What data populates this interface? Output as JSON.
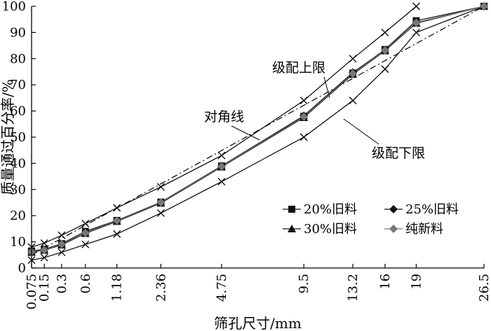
{
  "chart_data": {
    "type": "line",
    "xlabel": "筛孔尺寸/mm",
    "ylabel": "质量通过百分率/%",
    "x_tick_labels": [
      "0.075",
      "0.15",
      "0.3",
      "0.6",
      "1.18",
      "2.36",
      "4.75",
      "9.5",
      "13.2",
      "16",
      "19",
      "26.5"
    ],
    "x_scale": "power-0.45",
    "ylim": [
      0,
      100
    ],
    "y_ticks": [
      0,
      10,
      20,
      30,
      40,
      50,
      60,
      70,
      80,
      90,
      100
    ],
    "grid": false,
    "legend_position": "bottom-right",
    "series": [
      {
        "name": "20%旧料",
        "marker": "square",
        "color": "#111111",
        "x": [
          0.075,
          0.15,
          0.3,
          0.6,
          1.18,
          2.36,
          4.75,
          9.5,
          13.2,
          16,
          19,
          26.5
        ],
        "values": [
          6.5,
          7.2,
          9.3,
          14.0,
          18.2,
          25.2,
          39.0,
          58.0,
          74.5,
          83.5,
          94.5,
          100
        ]
      },
      {
        "name": "25%旧料",
        "marker": "diamond",
        "color": "#111111",
        "x": [
          0.075,
          0.15,
          0.3,
          0.6,
          1.18,
          2.36,
          4.75,
          9.5,
          13.2,
          16,
          19,
          26.5
        ],
        "values": [
          6.3,
          7.0,
          9.0,
          13.5,
          18.0,
          25.0,
          39.0,
          58.2,
          74.7,
          83.3,
          93.8,
          100
        ]
      },
      {
        "name": "30%旧料",
        "marker": "triangle",
        "color": "#111111",
        "x": [
          0.075,
          0.15,
          0.3,
          0.6,
          1.18,
          2.36,
          4.75,
          9.5,
          13.2,
          16,
          19,
          26.5
        ],
        "values": [
          6.0,
          6.8,
          8.8,
          13.2,
          17.8,
          24.8,
          38.6,
          57.5,
          74.0,
          83.0,
          93.5,
          100
        ]
      },
      {
        "name": "纯新料",
        "marker": "diamond",
        "color": "#777777",
        "x": [
          0.075,
          0.15,
          0.3,
          0.6,
          1.18,
          2.36,
          4.75,
          9.5,
          13.2,
          16,
          19,
          26.5
        ],
        "values": [
          6.2,
          6.9,
          9.1,
          13.4,
          18.1,
          25.1,
          38.8,
          57.8,
          74.3,
          83.2,
          93.7,
          100
        ]
      }
    ],
    "reference_lines": [
      {
        "label": "级配上限",
        "style": "solid",
        "marker": "x",
        "x": [
          0.075,
          0.15,
          0.3,
          0.6,
          1.18,
          2.36,
          4.75,
          9.5,
          13.2,
          16,
          19
        ],
        "values": [
          8,
          9.5,
          12.5,
          17,
          23,
          31,
          43,
          64,
          80,
          90,
          100
        ]
      },
      {
        "label": "级配下限",
        "style": "solid",
        "marker": "x",
        "x": [
          0.075,
          0.15,
          0.3,
          0.6,
          1.18,
          2.36,
          4.75,
          9.5,
          13.2,
          16,
          19,
          26.5
        ],
        "values": [
          3,
          4,
          6,
          9,
          13,
          21,
          33,
          50,
          64,
          76,
          90,
          100
        ]
      },
      {
        "label": "对角线",
        "style": "dashdot",
        "marker": "none",
        "x": [
          0.075,
          26.5
        ],
        "values": [
          5,
          100
        ]
      }
    ]
  }
}
